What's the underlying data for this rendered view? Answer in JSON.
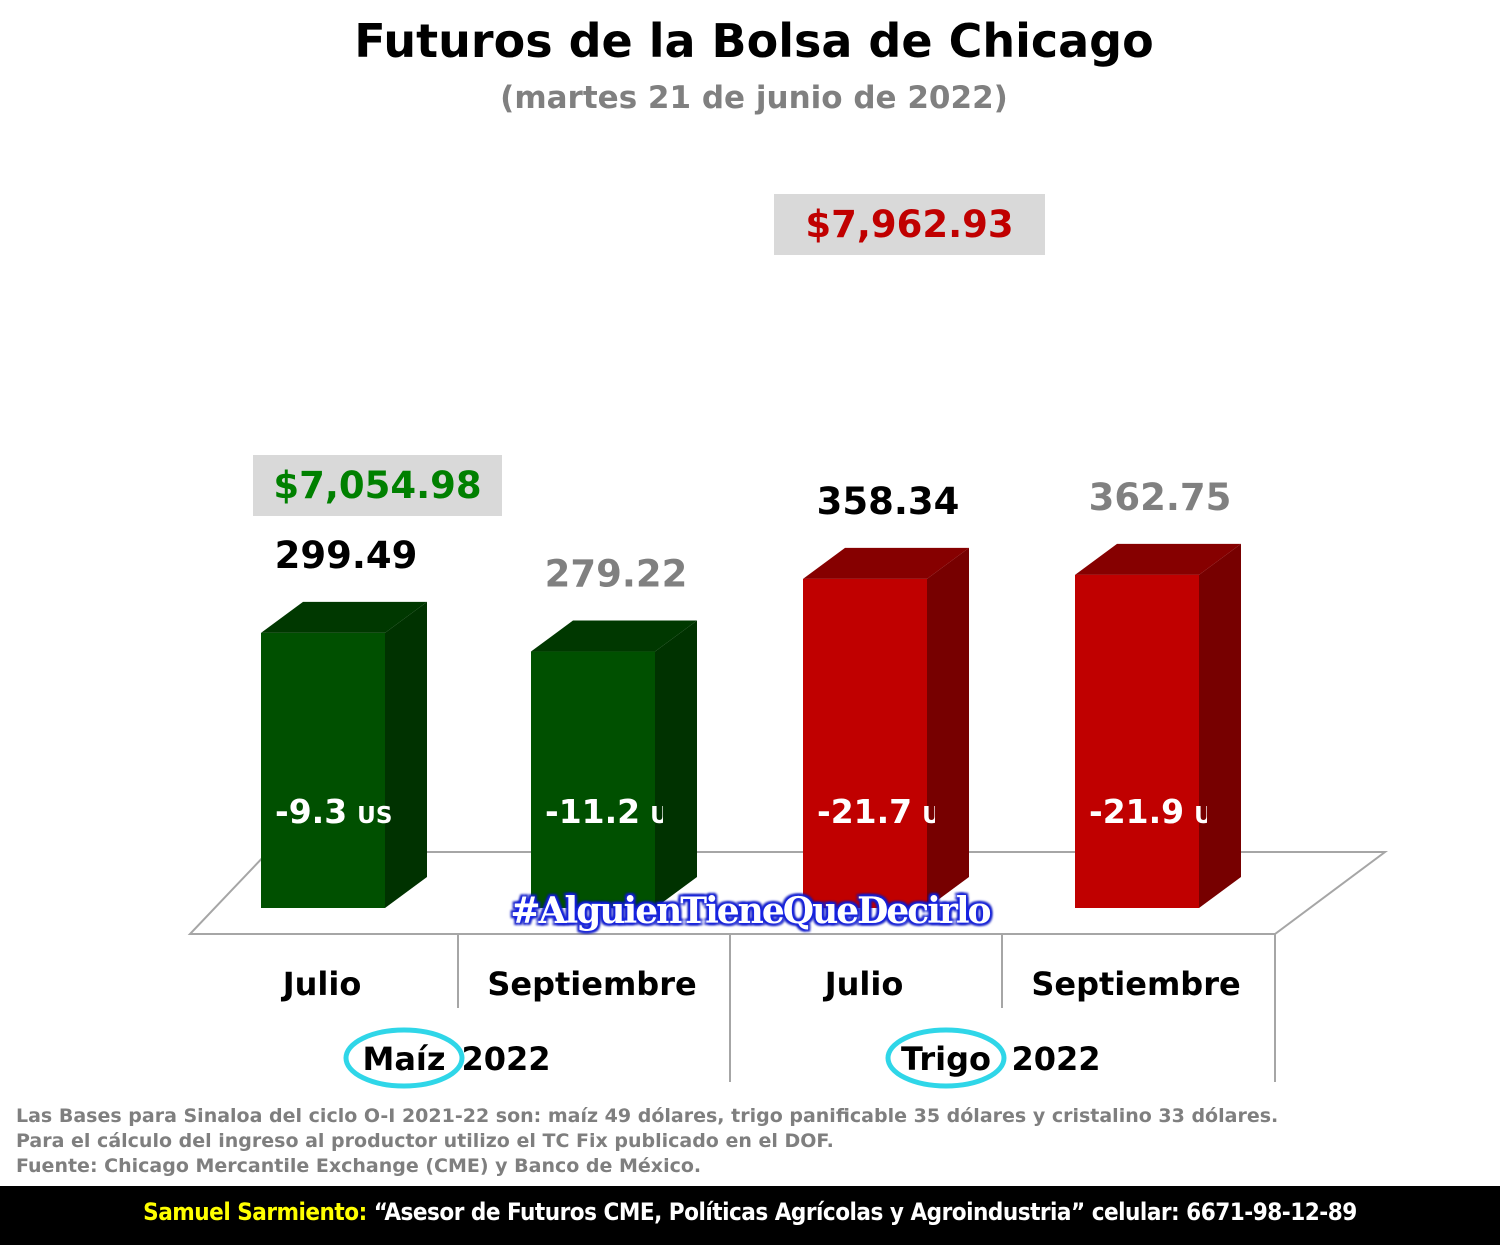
{
  "title": "Futuros de la Bolsa de Chicago",
  "subtitle": "(martes 21 de junio de 2022)",
  "hashtag": "#AlguienTieneQueDecirlo",
  "chart_data": {
    "type": "bar",
    "groups": [
      {
        "crop": "Maíz",
        "year": "2022",
        "color": "#005000",
        "price_box": "$7,054.98",
        "price_color": "#008000"
      },
      {
        "crop": "Trigo",
        "year": "2022",
        "color": "#c00000",
        "price_box": "$7,962.93",
        "price_color": "#c00000"
      }
    ],
    "bars": [
      {
        "group": 0,
        "category": "Julio",
        "value": 299.49,
        "value_label": "299.49",
        "value_color": "#000000",
        "base": "-9.3",
        "unit": "USD"
      },
      {
        "group": 0,
        "category": "Septiembre",
        "value": 279.22,
        "value_label": "279.22",
        "value_color": "#808080",
        "base": "-11.2",
        "unit": "USD"
      },
      {
        "group": 1,
        "category": "Julio",
        "value": 358.34,
        "value_label": "358.34",
        "value_color": "#000000",
        "base": "-21.7",
        "unit": "USD"
      },
      {
        "group": 1,
        "category": "Septiembre",
        "value": 362.75,
        "value_label": "362.75",
        "value_color": "#808080",
        "base": "-21.9",
        "unit": "USD"
      }
    ],
    "ylim": [
      0,
      400
    ]
  },
  "notes": [
    "Las Bases para Sinaloa del ciclo O-I 2021-22 son: maíz 49 dólares, trigo panificable 35 dólares y cristalino 33 dólares.",
    "Para el cálculo del ingreso al productor utilizo el TC Fix publicado en el DOF.",
    "Fuente: Chicago Mercantile Exchange (CME) y Banco de México."
  ],
  "footer": {
    "name": "Samuel Sarmiento:",
    "text": " “Asesor de Futuros CME, Políticas Agrícolas y Agroindustria”  celular: 6671-98-12-89"
  }
}
